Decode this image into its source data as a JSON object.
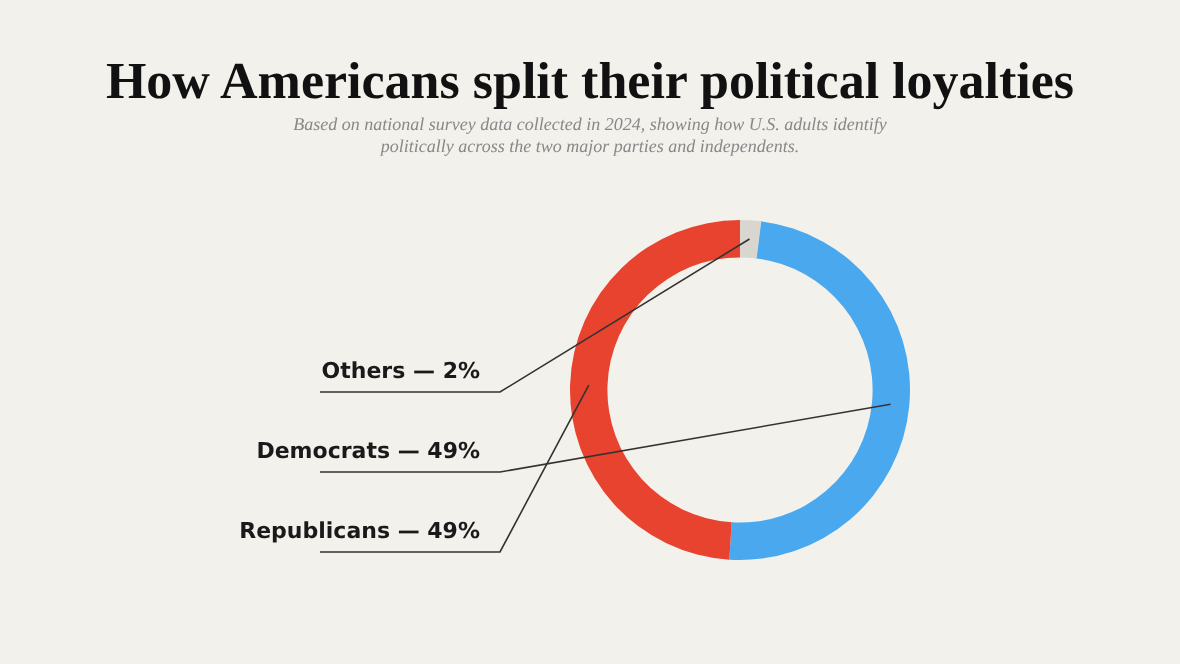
{
  "chart_data": {
    "type": "donut",
    "title": "How Americans split their political loyalties",
    "subtitle": "Based on national survey data collected in 2024, showing how U.S. adults identify politically across the two major parties and independents.",
    "categories": [
      "Others — 2%",
      "Democrats — 49%",
      "Republicans — 49%"
    ],
    "values": [
      2,
      49,
      49
    ],
    "colors": [
      "#d9d6d0",
      "#4aa8ef",
      "#e8432e"
    ],
    "legend": false
  }
}
